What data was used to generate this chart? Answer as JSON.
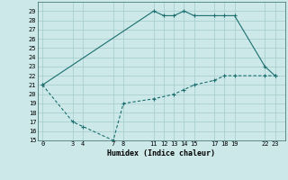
{
  "xlabel": "Humidex (Indice chaleur)",
  "bg_color": "#cce8e8",
  "grid_color": "#b0d4d4",
  "line_color": "#1a6e6e",
  "line1": [
    [
      0,
      21
    ],
    [
      11,
      29
    ],
    [
      12,
      28.5
    ],
    [
      13,
      28.5
    ],
    [
      14,
      29
    ],
    [
      15,
      28.5
    ],
    [
      17,
      28.5
    ],
    [
      18,
      28.5
    ],
    [
      19,
      28.5
    ],
    [
      22,
      23
    ],
    [
      23,
      22
    ]
  ],
  "line2": [
    [
      0,
      21
    ],
    [
      3,
      17
    ],
    [
      4,
      16.5
    ],
    [
      7,
      15
    ],
    [
      8,
      19
    ],
    [
      11,
      19.5
    ],
    [
      13,
      20
    ],
    [
      14,
      20.5
    ],
    [
      15,
      21
    ],
    [
      17,
      21.5
    ],
    [
      18,
      22
    ],
    [
      19,
      22
    ],
    [
      22,
      22
    ],
    [
      23,
      22
    ]
  ],
  "xlim": [
    -0.5,
    24
  ],
  "ylim": [
    15,
    30
  ],
  "xticks": [
    0,
    3,
    4,
    7,
    8,
    11,
    12,
    13,
    14,
    15,
    17,
    18,
    19,
    22,
    23
  ],
  "yticks": [
    15,
    16,
    17,
    18,
    19,
    20,
    21,
    22,
    23,
    24,
    25,
    26,
    27,
    28,
    29
  ]
}
